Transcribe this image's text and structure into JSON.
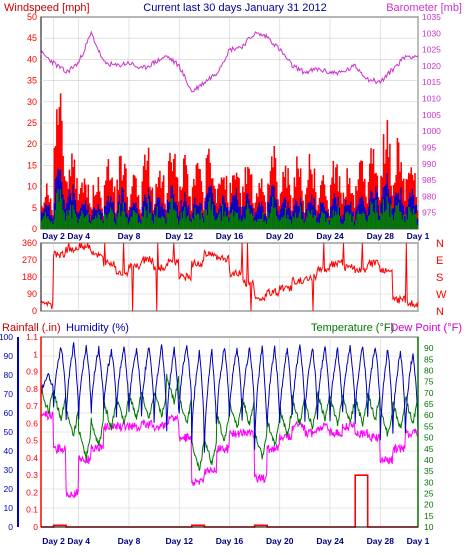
{
  "header": {
    "left_label": "Windspeed [mph]",
    "center_label": "Current last 30 days January 31 2012",
    "right_label": "Barometer [mb]"
  },
  "legend2": {
    "rainfall": "Rainfall (.in)",
    "humidity": "Humidity (%)",
    "temperature": "Temperature (°F)",
    "dewpoint": "Dew Point (°F)"
  },
  "colors": {
    "wind_gust": "#ff0000",
    "wind_avg": "#0000cc",
    "wind_low": "#008000",
    "barometer": "#cc33cc",
    "direction": "#ff0000",
    "rain": "#ff0000",
    "humidity": "#0000bb",
    "temperature": "#007700",
    "dewpoint": "#ff00ff",
    "day_label": "#000080"
  },
  "chart_data": [
    {
      "type": "bar",
      "title": "Current last 30 days January 31 2012",
      "ylabel": "Windspeed [mph]",
      "ylim": [
        0,
        50
      ],
      "yticks": [
        0,
        5,
        10,
        15,
        20,
        25,
        30,
        35,
        40,
        45,
        50
      ],
      "x_ticks": [
        "Day 2",
        "Day 4",
        "Day 8",
        "Day 12",
        "Day 16",
        "Day 20",
        "Day 24",
        "Day 28",
        "Day 1"
      ],
      "daily_peak_gust": [
        11,
        35,
        22,
        15,
        14,
        19,
        20,
        15,
        20,
        18,
        24,
        18,
        17,
        22,
        18,
        20,
        18,
        13,
        22,
        17,
        18,
        20,
        14,
        18,
        15,
        18,
        24,
        28,
        24,
        20
      ],
      "daily_peak_avg": [
        7,
        16,
        11,
        8,
        7,
        10,
        10,
        8,
        10,
        9,
        12,
        9,
        9,
        11,
        9,
        10,
        9,
        7,
        11,
        8,
        9,
        10,
        7,
        9,
        8,
        9,
        12,
        14,
        12,
        10
      ],
      "grid": true
    },
    {
      "type": "line",
      "ylabel": "Barometer [mb]",
      "ylim": [
        970,
        1035
      ],
      "yticks": [
        975,
        980,
        985,
        990,
        995,
        1000,
        1005,
        1010,
        1015,
        1020,
        1025,
        1030,
        1035
      ],
      "x": [
        1,
        2,
        3,
        4,
        5,
        6,
        7,
        8,
        9,
        10,
        11,
        12,
        13,
        14,
        15,
        16,
        17,
        18,
        19,
        20,
        21,
        22,
        23,
        24,
        25,
        26,
        27,
        28,
        29,
        30,
        31
      ],
      "values": [
        1024,
        1021,
        1018,
        1021,
        1030,
        1021,
        1020,
        1021,
        1019,
        1021,
        1023,
        1020,
        1012,
        1015,
        1018,
        1025,
        1026,
        1030,
        1029,
        1025,
        1020,
        1018,
        1019,
        1018,
        1018,
        1020,
        1016,
        1015,
        1019,
        1023,
        1023
      ]
    },
    {
      "type": "scatter",
      "ylabel": "Wind Direction",
      "ylim": [
        0,
        360
      ],
      "yticks": [
        0,
        90,
        180,
        270,
        360
      ],
      "compass": [
        "N",
        "W",
        "S",
        "E",
        "N"
      ],
      "x": [
        1,
        2,
        3,
        4,
        5,
        6,
        7,
        8,
        9,
        10,
        11,
        12,
        13,
        14,
        15,
        16,
        17,
        18,
        19,
        20,
        21,
        22,
        23,
        24,
        25,
        26,
        27,
        28,
        29,
        30,
        31
      ],
      "values": [
        30,
        300,
        320,
        340,
        300,
        250,
        200,
        240,
        270,
        230,
        260,
        180,
        250,
        300,
        280,
        200,
        150,
        70,
        100,
        120,
        160,
        180,
        220,
        250,
        230,
        220,
        250,
        210,
        60,
        40,
        50
      ]
    },
    {
      "type": "line",
      "ylabel": "Humidity (%)",
      "ylim": [
        0,
        100
      ],
      "yticks": [
        0,
        10,
        20,
        30,
        40,
        50,
        60,
        70,
        80,
        90,
        100
      ],
      "rain_ylim": [
        0,
        1.1
      ],
      "rain_ticks": [
        0,
        0.1,
        0.2,
        0.3,
        0.4,
        0.5,
        0.6,
        0.7,
        0.8,
        0.9,
        1,
        1.1
      ],
      "temp_ylim": [
        10,
        95
      ],
      "temp_ticks": [
        10,
        15,
        20,
        25,
        30,
        35,
        40,
        45,
        50,
        55,
        60,
        65,
        70,
        75,
        80,
        85,
        90
      ],
      "x_ticks": [
        "Day 2",
        "Day 4",
        "Day 8",
        "Day 12",
        "Day 16",
        "Day 20",
        "Day 24",
        "Day 28",
        "Day 1"
      ],
      "humidity_daily_max": [
        80,
        95,
        96,
        95,
        94,
        93,
        95,
        94,
        95,
        95,
        94,
        96,
        92,
        93,
        95,
        94,
        95,
        95,
        94,
        94,
        95,
        95,
        95,
        94,
        95,
        96,
        95,
        94,
        93,
        92
      ],
      "humidity_daily_min": [
        70,
        62,
        55,
        58,
        60,
        62,
        58,
        60,
        58,
        55,
        50,
        60,
        45,
        40,
        55,
        58,
        56,
        42,
        52,
        55,
        58,
        56,
        58,
        56,
        60,
        55,
        58,
        45,
        50,
        50
      ],
      "temperature_daily": [
        65,
        62,
        55,
        45,
        50,
        58,
        60,
        62,
        62,
        63,
        70,
        60,
        40,
        42,
        52,
        58,
        60,
        45,
        50,
        55,
        60,
        58,
        62,
        60,
        60,
        60,
        62,
        55,
        58,
        60
      ],
      "dewpoint_daily": [
        60,
        45,
        25,
        40,
        45,
        55,
        55,
        55,
        56,
        55,
        58,
        50,
        30,
        35,
        45,
        52,
        52,
        32,
        45,
        50,
        55,
        52,
        55,
        52,
        55,
        52,
        50,
        40,
        45,
        52
      ],
      "rain_daily": [
        0,
        0.01,
        0,
        0,
        0,
        0,
        0,
        0,
        0,
        0,
        0,
        0,
        0.01,
        0,
        0,
        0,
        0,
        0.01,
        0,
        0,
        0,
        0,
        0,
        0,
        0,
        0.3,
        0,
        0,
        0,
        0
      ]
    }
  ]
}
